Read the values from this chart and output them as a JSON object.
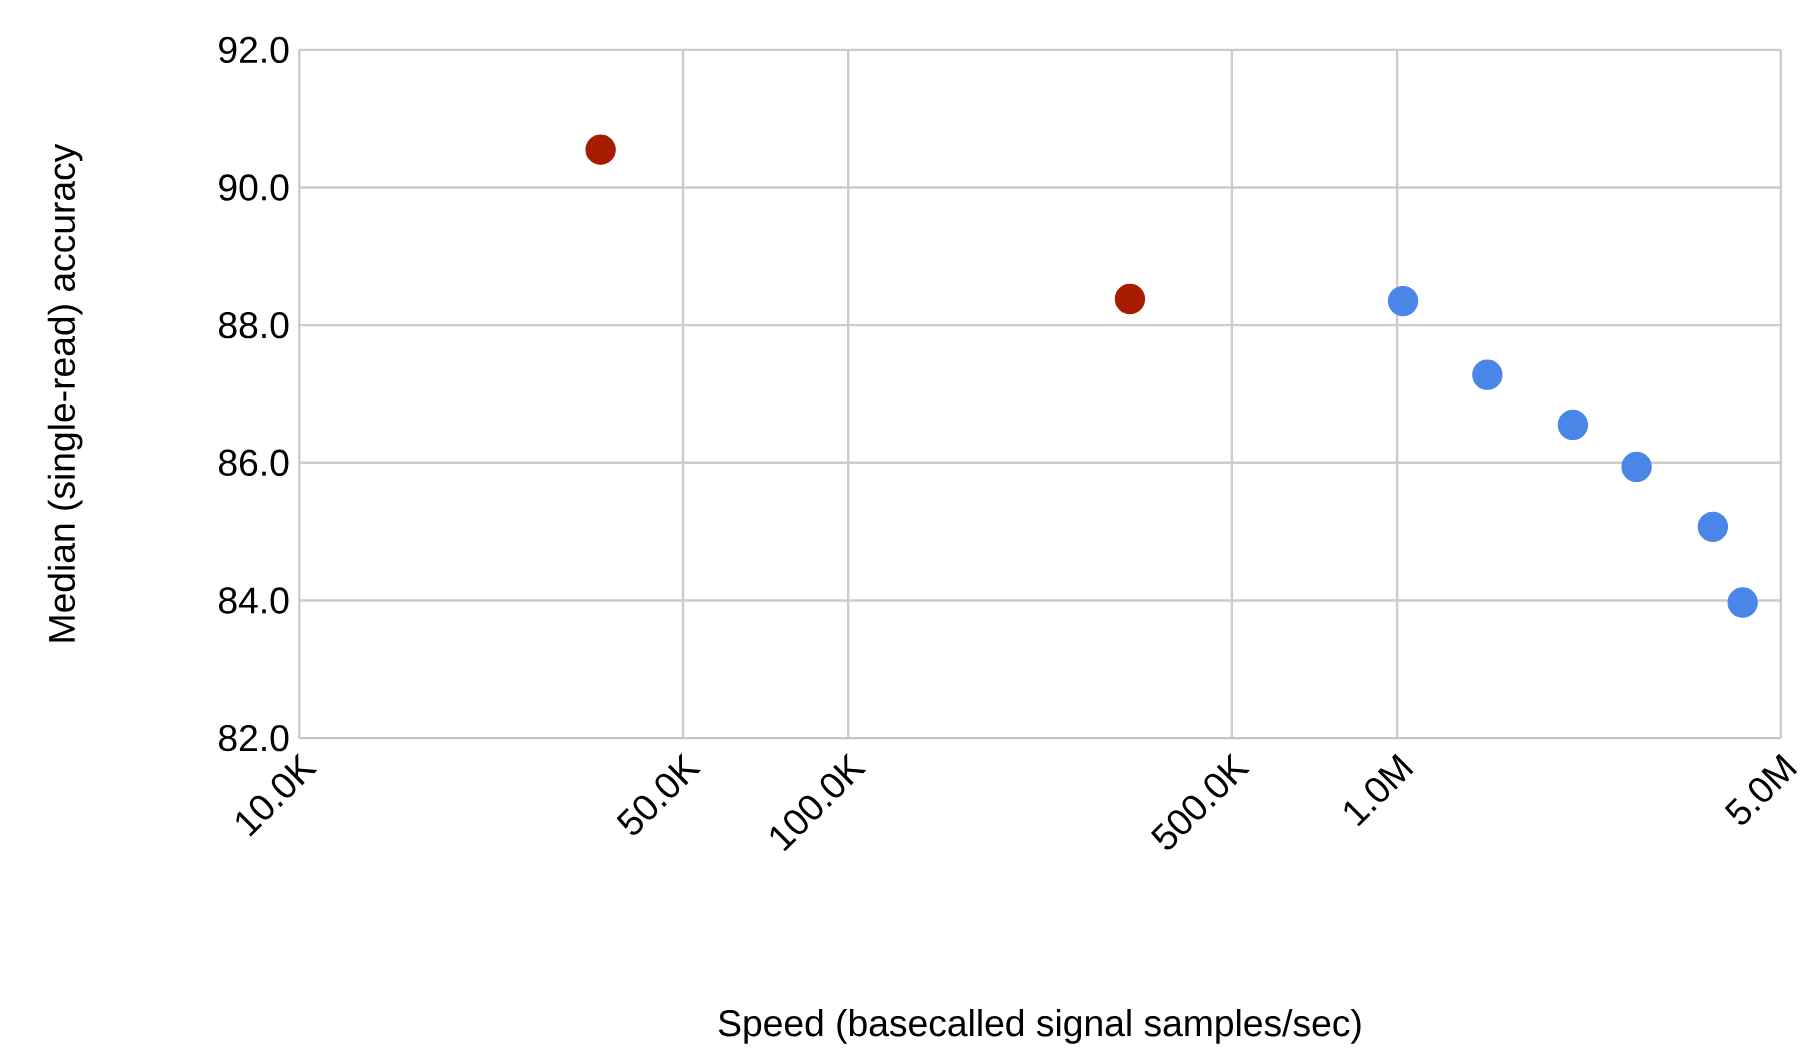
{
  "chart_data": {
    "type": "scatter",
    "xlabel": "Speed (basecalled signal samples/sec)",
    "ylabel": "Median (single-read) accuracy",
    "log": "x",
    "grid": true,
    "marker": "circle",
    "xlim": [
      10000,
      5000000
    ],
    "xticks": [
      {
        "value": 10000,
        "label": "10.0K"
      },
      {
        "value": 50000,
        "label": "50.0K"
      },
      {
        "value": 100000,
        "label": "100.0K"
      },
      {
        "value": 500000,
        "label": "500.0K"
      },
      {
        "value": 1000000,
        "label": "1.0M"
      },
      {
        "value": 5000000,
        "label": "5.0M"
      }
    ],
    "ylim": [
      82,
      92
    ],
    "yticks": [
      {
        "value": 82,
        "label": "82.0"
      },
      {
        "value": 84,
        "label": "84.0"
      },
      {
        "value": 86,
        "label": "86.0"
      },
      {
        "value": 88,
        "label": "88.0"
      },
      {
        "value": 90,
        "label": "90.0"
      },
      {
        "value": 92,
        "label": "92.0"
      }
    ],
    "series": [
      {
        "color": "#a61c00",
        "x": [
          35400,
          326000
        ],
        "values": [
          90.55,
          88.38
        ]
      },
      {
        "color": "#4a86e8",
        "x": [
          1025000,
          1460000,
          2090000,
          2730000,
          3760000,
          4260000
        ],
        "values": [
          88.35,
          87.28,
          86.55,
          85.94,
          85.07,
          83.97
        ]
      }
    ]
  }
}
